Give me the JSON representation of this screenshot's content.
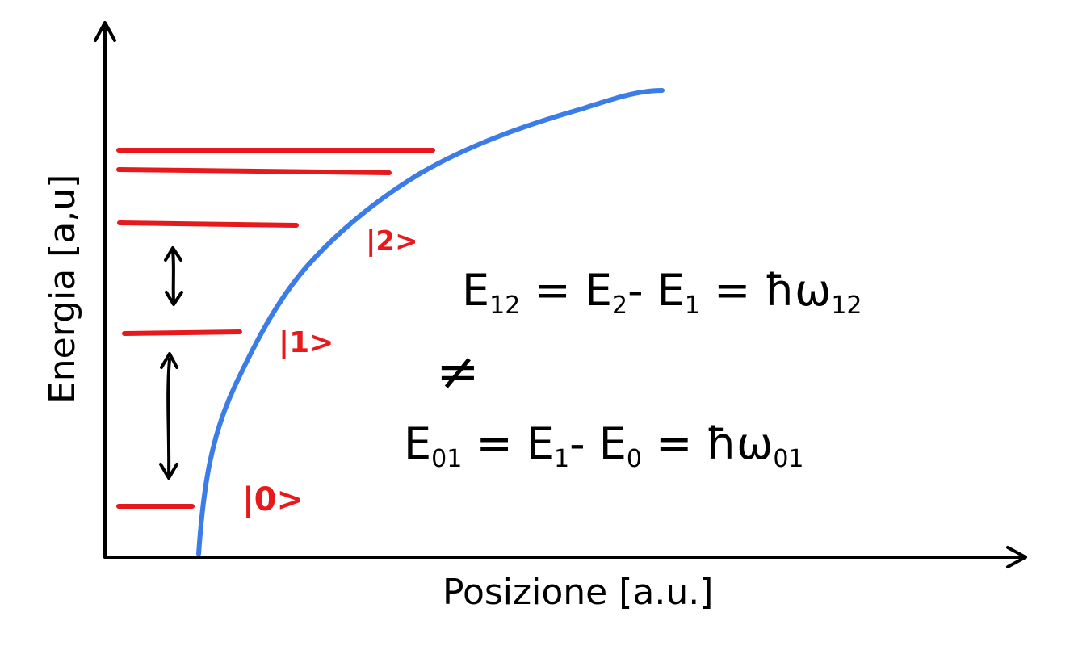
{
  "axes": {
    "xlabel": "Posizione [a.u.]",
    "ylabel": "Energia [a,u]"
  },
  "levels": [
    {
      "label": "|0>"
    },
    {
      "label": "|1>"
    },
    {
      "label": "|2>"
    }
  ],
  "equations": {
    "e12": {
      "prefix": "E",
      "sub": "12",
      "mid": " = E",
      "mid_sub": "2",
      "mid2": "- E",
      "mid2_sub": "1",
      "end": " = ħω",
      "end_sub": "12"
    },
    "not_equal": "≠",
    "e01": {
      "prefix": "E",
      "sub": "01",
      "mid": " = E",
      "mid_sub": "1",
      "mid2": "- E",
      "mid2_sub": "0",
      "end": " = ħω",
      "end_sub": "01"
    }
  },
  "colors": {
    "axis": "#000000",
    "curve": "#3b7ce8",
    "levels": "#e8191c",
    "arrows": "#000000"
  }
}
